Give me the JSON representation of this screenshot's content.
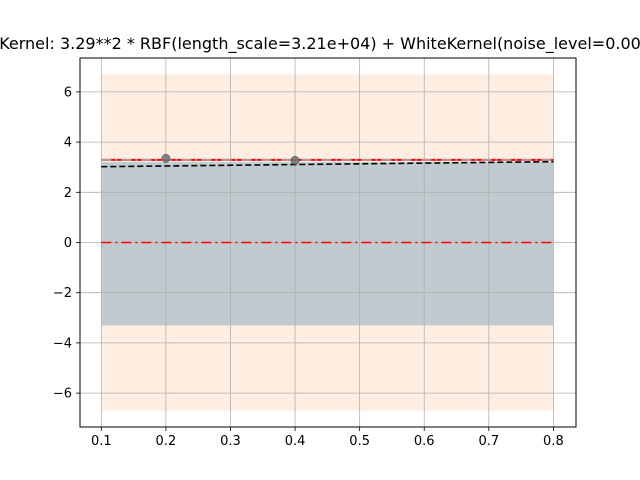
{
  "chart_data": {
    "type": "line",
    "title": "Kernel: 3.29**2 * RBF(length_scale=3.21e+04) + WhiteKernel(noise_level=0.00",
    "xlabel": "",
    "ylabel": "",
    "xlim": [
      0.067,
      0.835
    ],
    "ylim": [
      -7.35,
      7.35
    ],
    "xticks": [
      0.1,
      0.2,
      0.3,
      0.4,
      0.5,
      0.6,
      0.7,
      0.8
    ],
    "xtick_labels": [
      "0.1",
      "0.2",
      "0.3",
      "0.4",
      "0.5",
      "0.6",
      "0.7",
      "0.8"
    ],
    "yticks": [
      -6,
      -4,
      -2,
      0,
      2,
      4,
      6
    ],
    "ytick_labels": [
      "−6",
      "−4",
      "−2",
      "0",
      "2",
      "4",
      "6"
    ],
    "grid": true,
    "legend": "none",
    "bands": [
      {
        "name": "",
        "x": [
          0.1,
          0.8
        ],
        "lower": [
          -6.7,
          -6.7
        ],
        "upper": [
          6.7,
          6.7
        ],
        "color": "#fdeee1"
      },
      {
        "name": "",
        "x": [
          0.1,
          0.8
        ],
        "lower": [
          -3.3,
          -3.3
        ],
        "upper": [
          3.2,
          3.2
        ],
        "color": "#bfcbcf"
      }
    ],
    "series": [
      {
        "name": "",
        "style": "solid",
        "color": "#ff0000",
        "x": [
          0.1,
          0.8
        ],
        "y": [
          3.29,
          3.29
        ]
      },
      {
        "name": "",
        "style": "dashdot",
        "color": "#ff0000",
        "x": [
          0.1,
          0.8
        ],
        "y": [
          0.0,
          0.0
        ]
      },
      {
        "name": "",
        "style": "dashed",
        "color": "#000000",
        "x": [
          0.1,
          0.8
        ],
        "y": [
          3.02,
          3.22
        ]
      },
      {
        "name": "",
        "style": "dashdot",
        "color": "#aaaaaa",
        "x": [
          0.1,
          0.8
        ],
        "y": [
          3.29,
          3.29
        ]
      }
    ],
    "points": {
      "name": "",
      "color": "#6e6e6e",
      "x": [
        0.2,
        0.4
      ],
      "y": [
        3.35,
        3.27
      ]
    }
  }
}
